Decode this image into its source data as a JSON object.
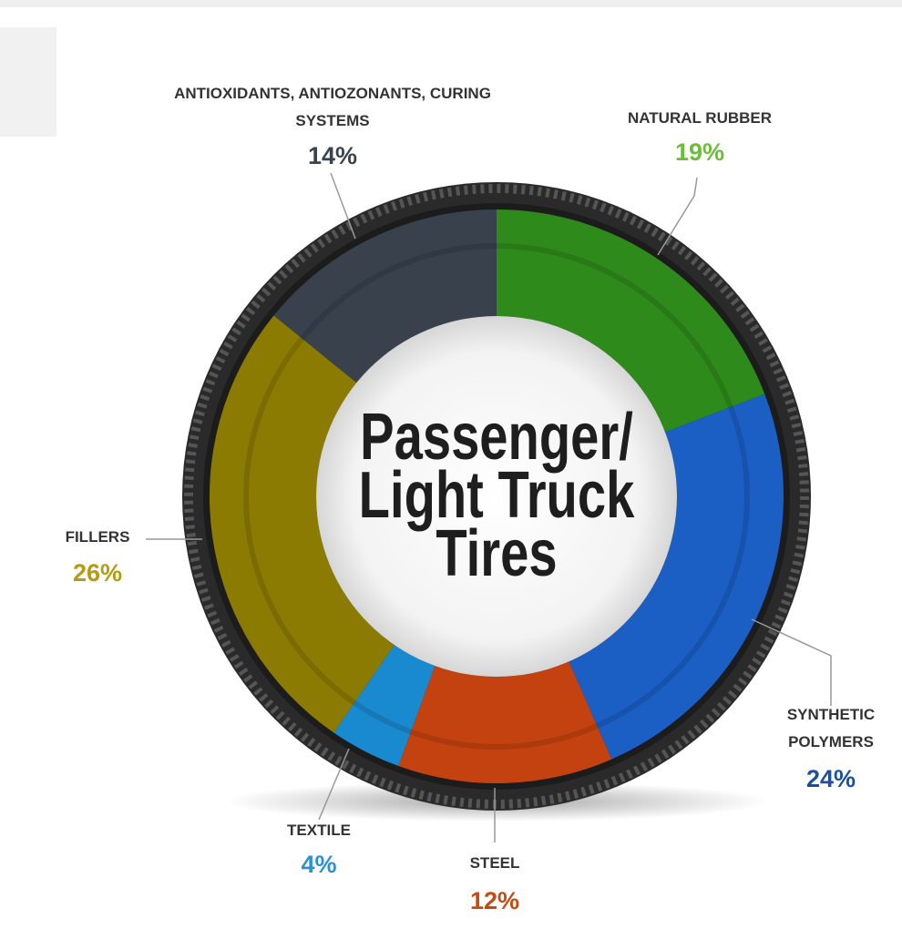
{
  "chart_data": {
    "type": "donut",
    "title": "Passenger/ Light Truck Tires",
    "categories": [
      "NATURAL RUBBER",
      "SYNTHETIC POLYMERS",
      "STEEL",
      "TEXTILE",
      "FILLERS",
      "ANTIOXIDANTS, ANTIOZONANTS, CURING SYSTEMS"
    ],
    "values": [
      19,
      24,
      12,
      4,
      26,
      14
    ],
    "value_labels": [
      "19%",
      "24%",
      "12%",
      "4%",
      "26%",
      "14%"
    ],
    "colors": [
      "#2f8a1c",
      "#1b5ec4",
      "#c4420f",
      "#1a8ad0",
      "#8c7b02",
      "#38414c"
    ],
    "label_colors": [
      "#6cbd3a",
      "#1c4f9e",
      "#c24c12",
      "#2a91d2",
      "#b39c10",
      "#3a4450"
    ]
  }
}
